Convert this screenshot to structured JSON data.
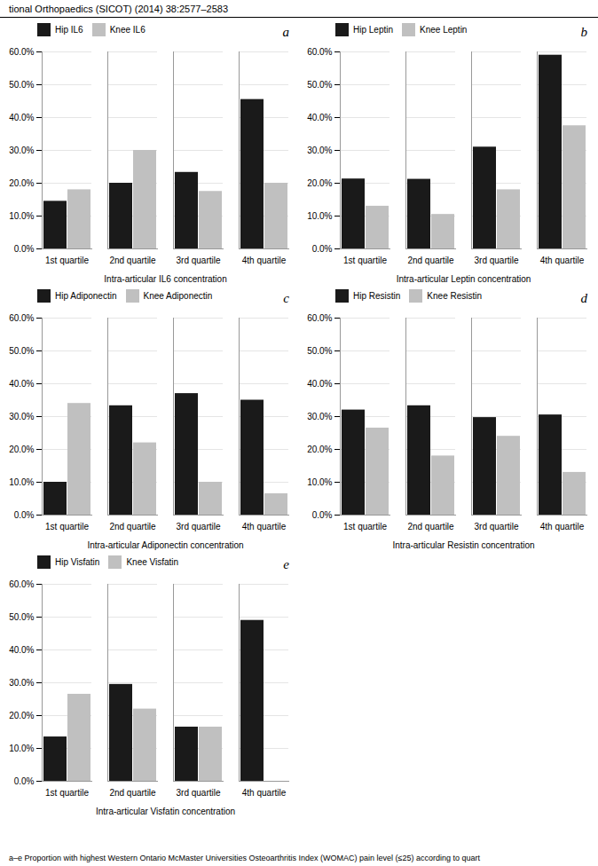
{
  "title": "tional Orthopaedics (SICOT) (2014) 38:2577–2583",
  "caption": "a–e Proportion with highest Western Ontario McMaster Universities Osteoarthritis Index (WOMAC) pain level (≤25) according to quart",
  "chart_data": [
    {
      "type": "bar",
      "annotations": [
        "a"
      ],
      "xlabel": "Intra-articular IL6 concentration",
      "categories": [
        "1st quartile",
        "2nd quartile",
        "3rd quartile",
        "4th quartile"
      ],
      "series": [
        {
          "name": "Hip IL6",
          "color": "#1a1a1a",
          "values": [
            0.145,
            0.2,
            0.233,
            0.455
          ]
        },
        {
          "name": "Knee IL6",
          "color": "#c0c0c0",
          "values": [
            0.18,
            0.3,
            0.175,
            0.2
          ]
        }
      ],
      "ylim": [
        0.0,
        0.6
      ],
      "yticks": [
        {
          "value": 0.0,
          "label": "0.0%"
        },
        {
          "value": 0.1,
          "label": "10.0%"
        },
        {
          "value": 0.2,
          "label": "20.0%"
        },
        {
          "value": 0.3,
          "label": "30.0%"
        },
        {
          "value": 0.4,
          "label": "40.0%"
        },
        {
          "value": 0.5,
          "label": "50.0%"
        },
        {
          "value": 0.6,
          "label": "60.0%"
        }
      ],
      "grid": true,
      "legend": "upper left"
    },
    {
      "type": "bar",
      "annotations": [
        "b"
      ],
      "xlabel": "Intra-articular Leptin concentration",
      "categories": [
        "1st quartile",
        "2nd quartile",
        "3rd quartile",
        "4th quartile"
      ],
      "series": [
        {
          "name": "Hip Leptin",
          "color": "#1a1a1a",
          "values": [
            0.213,
            0.212,
            0.31,
            0.59
          ]
        },
        {
          "name": "Knee Leptin",
          "color": "#c0c0c0",
          "values": [
            0.13,
            0.105,
            0.18,
            0.375
          ]
        }
      ],
      "ylim": [
        0.0,
        0.6
      ],
      "yticks": [
        {
          "value": 0.0,
          "label": "0.0%"
        },
        {
          "value": 0.1,
          "label": "10.0%"
        },
        {
          "value": 0.2,
          "label": "20.0%"
        },
        {
          "value": 0.3,
          "label": "30.0%"
        },
        {
          "value": 0.4,
          "label": "40.0%"
        },
        {
          "value": 0.5,
          "label": "50.0%"
        },
        {
          "value": 0.6,
          "label": "60.0%"
        }
      ],
      "grid": true,
      "legend": "upper left"
    },
    {
      "type": "bar",
      "annotations": [
        "c"
      ],
      "xlabel": "Intra-articular Adiponectin concentration",
      "categories": [
        "1st quartile",
        "2nd quartile",
        "3rd quartile",
        "4th quartile"
      ],
      "series": [
        {
          "name": "Hip Adiponectin",
          "color": "#1a1a1a",
          "values": [
            0.1,
            0.333,
            0.37,
            0.35
          ]
        },
        {
          "name": "Knee Adiponectin",
          "color": "#c0c0c0",
          "values": [
            0.34,
            0.22,
            0.1,
            0.065
          ]
        }
      ],
      "ylim": [
        0.0,
        0.6
      ],
      "yticks": [
        {
          "value": 0.0,
          "label": "0.0%"
        },
        {
          "value": 0.1,
          "label": "10.0%"
        },
        {
          "value": 0.2,
          "label": "20.0%"
        },
        {
          "value": 0.3,
          "label": "30.0%"
        },
        {
          "value": 0.4,
          "label": "40.0%"
        },
        {
          "value": 0.5,
          "label": "50.0%"
        },
        {
          "value": 0.6,
          "label": "60.0%"
        }
      ],
      "grid": true,
      "legend": "upper left"
    },
    {
      "type": "bar",
      "annotations": [
        "d"
      ],
      "xlabel": "Intra-articular Resistin concentration",
      "categories": [
        "1st quartile",
        "2nd quartile",
        "3rd quartile",
        "4th quartile"
      ],
      "series": [
        {
          "name": "Hip Resistin",
          "color": "#1a1a1a",
          "values": [
            0.32,
            0.333,
            0.297,
            0.305
          ]
        },
        {
          "name": "Knee Resistin",
          "color": "#c0c0c0",
          "values": [
            0.265,
            0.18,
            0.24,
            0.13
          ]
        }
      ],
      "ylim": [
        0.0,
        0.6
      ],
      "yticks": [
        {
          "value": 0.0,
          "label": "0.0%"
        },
        {
          "value": 0.1,
          "label": "10.0%"
        },
        {
          "value": 0.2,
          "label": "20.0%"
        },
        {
          "value": 0.3,
          "label": "30.0%"
        },
        {
          "value": 0.4,
          "label": "40.0%"
        },
        {
          "value": 0.5,
          "label": "50.0%"
        },
        {
          "value": 0.6,
          "label": "60.0%"
        }
      ],
      "grid": true,
      "legend": "upper left"
    },
    {
      "type": "bar",
      "annotations": [
        "e"
      ],
      "xlabel": "Intra-articular Visfatin concentration",
      "categories": [
        "1st quartile",
        "2nd quartile",
        "3rd quartile",
        "4th quartile"
      ],
      "series": [
        {
          "name": "Hip Visfatin",
          "color": "#1a1a1a",
          "values": [
            0.135,
            0.295,
            0.165,
            0.49
          ]
        },
        {
          "name": "Knee Visfatin",
          "color": "#c0c0c0",
          "values": [
            0.265,
            0.22,
            0.165,
            0.0
          ]
        }
      ],
      "ylim": [
        0.0,
        0.6
      ],
      "yticks": [
        {
          "value": 0.0,
          "label": "0.0%"
        },
        {
          "value": 0.1,
          "label": "10.0%"
        },
        {
          "value": 0.2,
          "label": "20.0%"
        },
        {
          "value": 0.3,
          "label": "30.0%"
        },
        {
          "value": 0.4,
          "label": "40.0%"
        },
        {
          "value": 0.5,
          "label": "50.0%"
        },
        {
          "value": 0.6,
          "label": "60.0%"
        }
      ],
      "grid": true,
      "legend": "upper left"
    }
  ]
}
